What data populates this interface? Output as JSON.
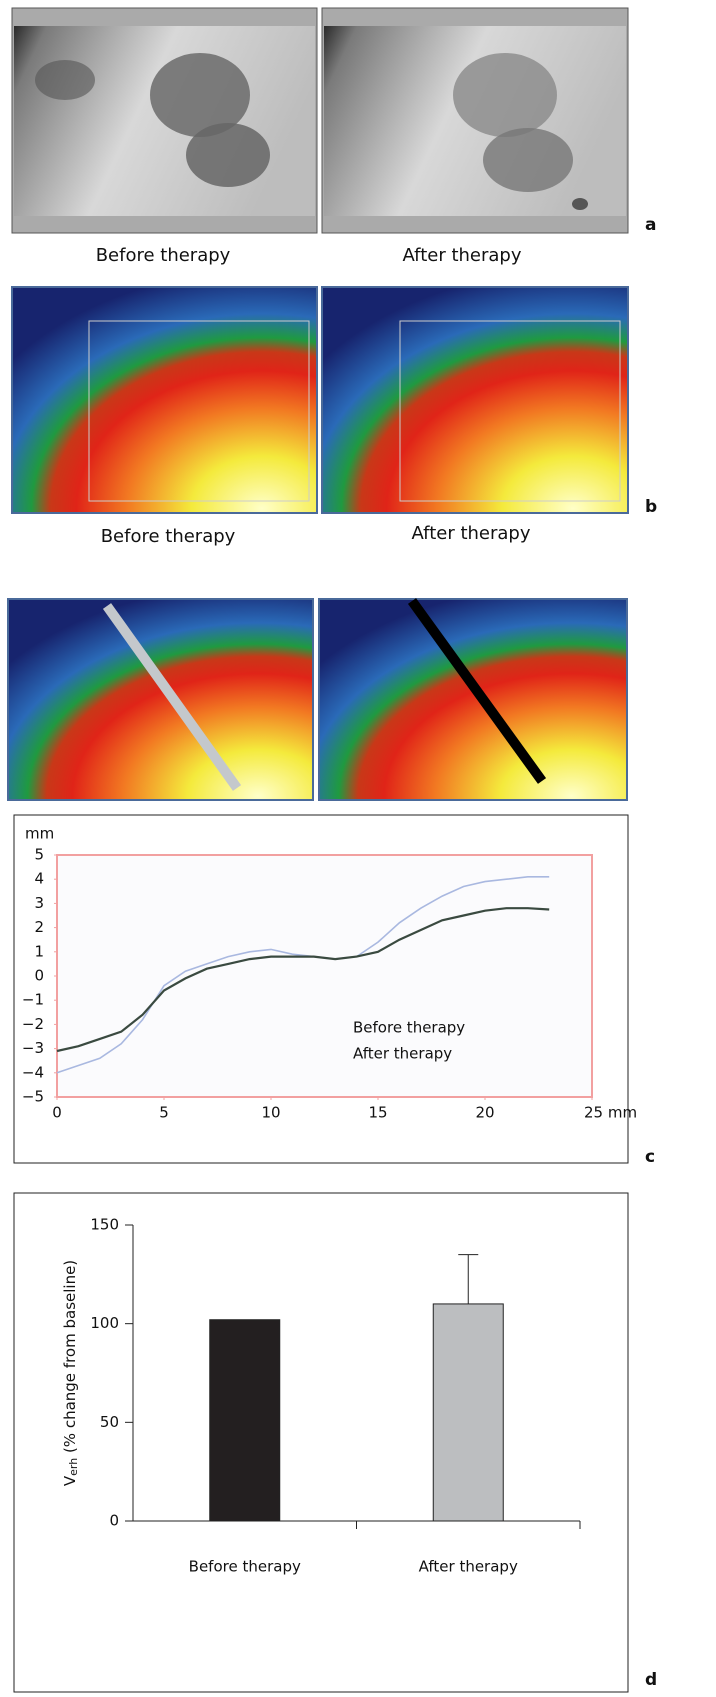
{
  "panels": {
    "a": {
      "label": "a",
      "captions": [
        "Before therapy",
        "After therapy"
      ]
    },
    "b": {
      "label": "b",
      "captions": [
        "Before therapy",
        "After therapy"
      ]
    },
    "c": {
      "label": "c"
    },
    "d": {
      "label": "d"
    }
  },
  "chart_data": [
    {
      "type": "line",
      "ylabel": "mm",
      "x": [
        0,
        1,
        2,
        3,
        4,
        5,
        6,
        7,
        8,
        9,
        10,
        11,
        12,
        13,
        14,
        15,
        16,
        17,
        18,
        19,
        20,
        21,
        22,
        23
      ],
      "series": [
        {
          "name": "Before therapy",
          "color": "#a9b8e0",
          "label_color": "#9a9a9a",
          "values": [
            -4.0,
            -3.7,
            -3.4,
            -2.8,
            -1.8,
            -0.4,
            0.2,
            0.5,
            0.8,
            1.0,
            1.1,
            0.9,
            0.8,
            0.7,
            0.8,
            1.4,
            2.2,
            2.8,
            3.3,
            3.7,
            3.9,
            4.0,
            4.1,
            4.1
          ]
        },
        {
          "name": "After therapy",
          "color": "#3a4a40",
          "label_color": "#111111",
          "values": [
            -3.1,
            -2.9,
            -2.6,
            -2.3,
            -1.6,
            -0.6,
            -0.1,
            0.3,
            0.5,
            0.7,
            0.8,
            0.8,
            0.8,
            0.7,
            0.8,
            1.0,
            1.5,
            1.9,
            2.3,
            2.5,
            2.7,
            2.8,
            2.8,
            2.75
          ]
        }
      ],
      "xlim": [
        0,
        25
      ],
      "ylim": [
        -5,
        5
      ],
      "xticks": [
        0,
        5,
        10,
        15,
        20,
        {
          "value": 25,
          "label": "25 mm"
        }
      ],
      "yticks": [
        {
          "value": -5,
          "label": "−5"
        },
        {
          "value": -4,
          "label": "−4"
        },
        {
          "value": -3,
          "label": "−3"
        },
        {
          "value": -2,
          "label": "−2"
        },
        {
          "value": -1,
          "label": "−1"
        },
        0,
        1,
        2,
        3,
        4,
        5
      ],
      "frame_color": "#f2a0a0"
    },
    {
      "type": "bar",
      "ylabel": {
        "main": "V",
        "sub": "erh",
        "rest": " (% change from baseline)"
      },
      "categories": [
        "Before therapy",
        "After therapy"
      ],
      "values": [
        102,
        110
      ],
      "errors": [
        null,
        25
      ],
      "colors": [
        "#231f20",
        "#bcbec0"
      ],
      "ylim": [
        0,
        150
      ],
      "yticks": [
        0,
        50,
        100,
        150
      ]
    }
  ]
}
